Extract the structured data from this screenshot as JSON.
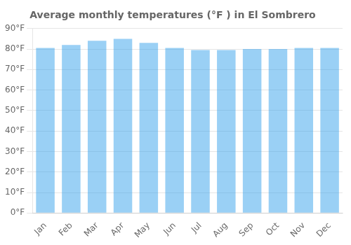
{
  "chart_data": {
    "type": "bar",
    "title": "Average monthly temperatures (°F ) in El Sombrero",
    "categories": [
      "Jan",
      "Feb",
      "Mar",
      "Apr",
      "May",
      "Jun",
      "Jul",
      "Aug",
      "Sep",
      "Oct",
      "Nov",
      "Dec"
    ],
    "values": [
      80.5,
      82.0,
      84.0,
      85.0,
      83.0,
      80.5,
      79.5,
      79.5,
      80.0,
      80.0,
      80.5,
      80.5
    ],
    "ylim": [
      0,
      90
    ],
    "yticks": [
      {
        "value": 0,
        "label": "0°F"
      },
      {
        "value": 10,
        "label": "10°F"
      },
      {
        "value": 20,
        "label": "20°F"
      },
      {
        "value": 30,
        "label": "30°F"
      },
      {
        "value": 40,
        "label": "40°F"
      },
      {
        "value": 50,
        "label": "50°F"
      },
      {
        "value": 60,
        "label": "60°F"
      },
      {
        "value": 70,
        "label": "70°F"
      },
      {
        "value": 80,
        "label": "80°F"
      },
      {
        "value": 90,
        "label": "90°F"
      }
    ],
    "grid": true
  }
}
